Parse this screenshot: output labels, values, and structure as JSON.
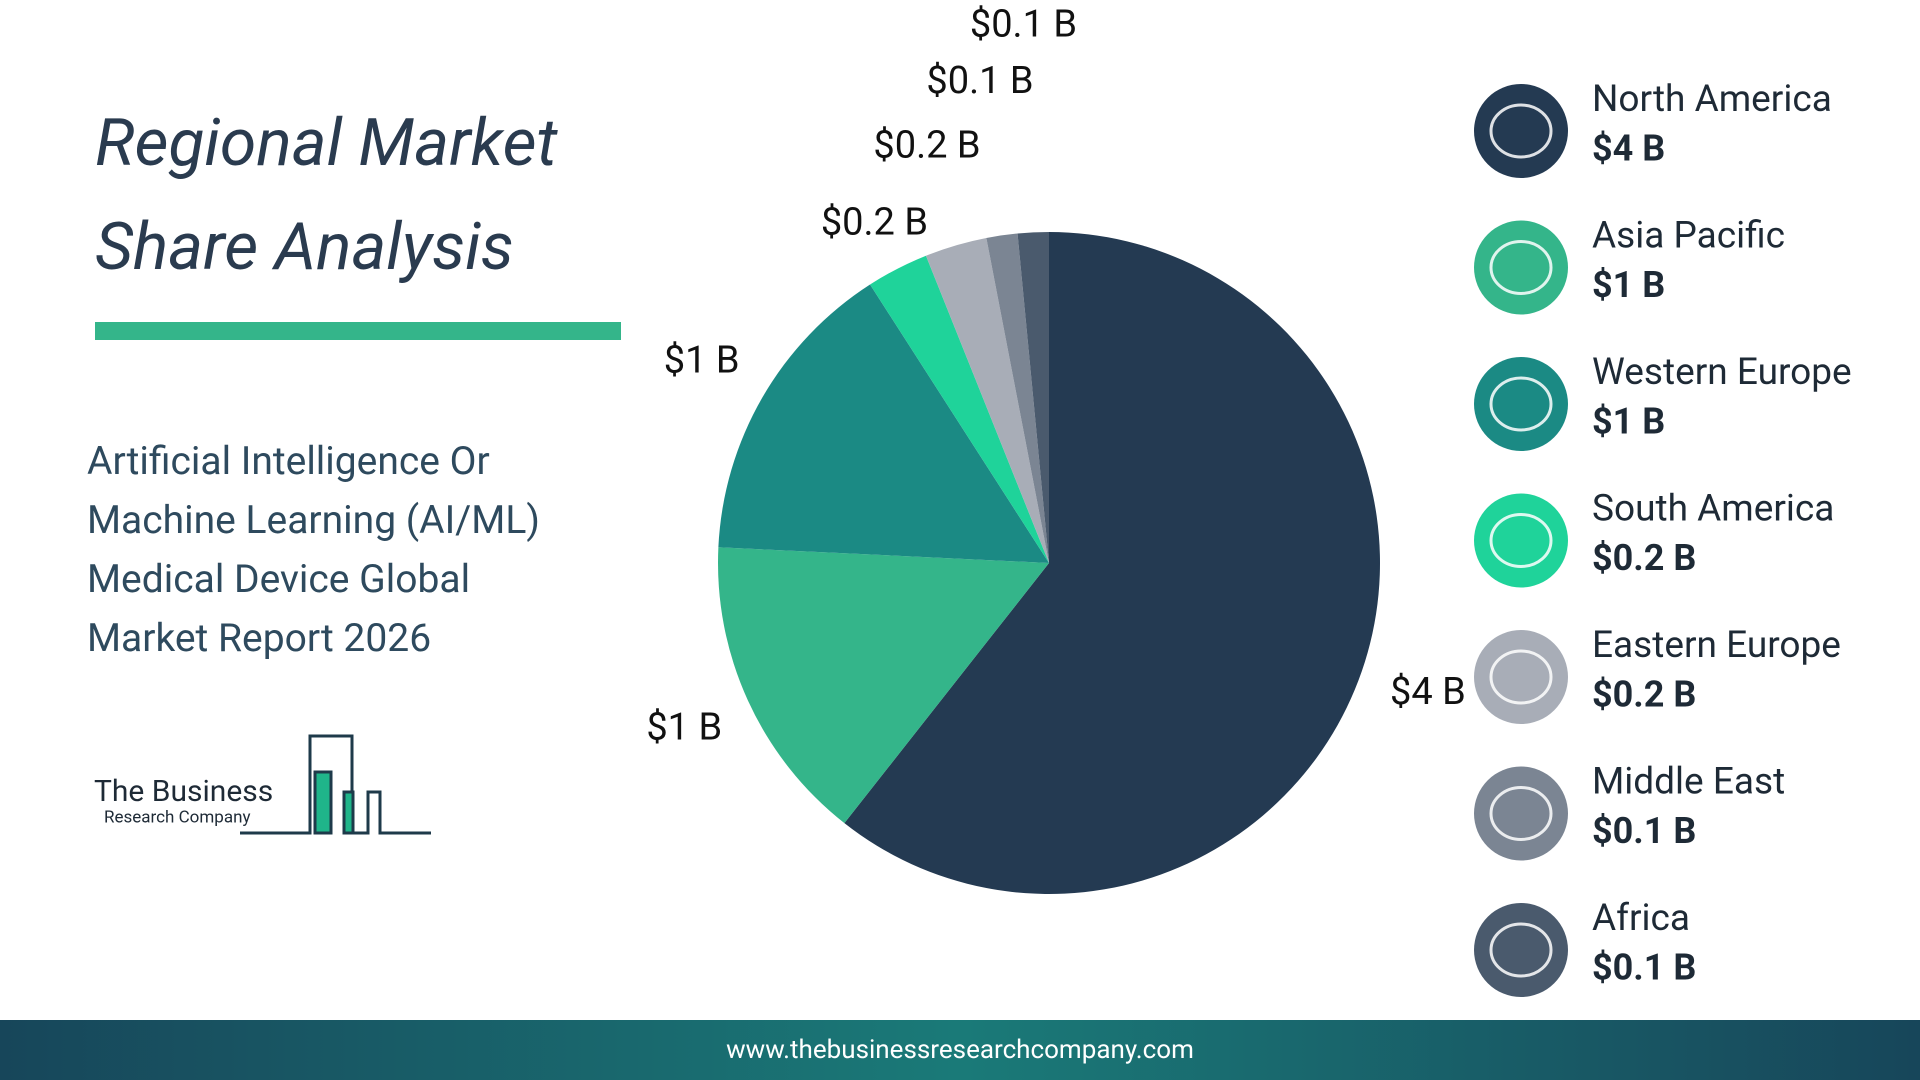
{
  "chart_data": {
    "type": "pie",
    "title": "Regional Market Share Analysis",
    "subtitle": "Artificial Intelligence Or Machine Learning (AI/ML) Medical Device Global Market Report 2026",
    "categories": [
      "North America",
      "Asia Pacific",
      "Western Europe",
      "South America",
      "Eastern Europe",
      "Middle East",
      "Africa"
    ],
    "values": [
      4,
      1,
      1,
      0.2,
      0.2,
      0.1,
      0.1
    ],
    "value_labels": [
      "$4 B",
      "$1 B",
      "$1 B",
      "$0.2 B",
      "$0.2 B",
      "$0.1 B",
      "$0.1 B"
    ],
    "colors": [
      "#243a52",
      "#34b58a",
      "#1b8a84",
      "#1fd39a",
      "#a8adb7",
      "#7b8593",
      "#4a5a6d"
    ],
    "legend": "right"
  },
  "logo": {
    "line1": "The Business",
    "line2": "Research Company"
  },
  "footer": {
    "url": "www.thebusinessresearchcompany.com"
  }
}
